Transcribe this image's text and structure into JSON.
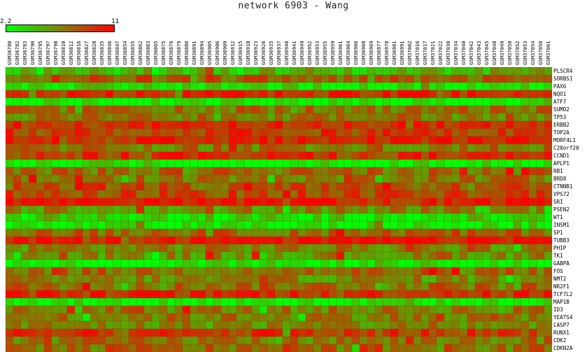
{
  "title": "network 6903 - Wang",
  "scale": {
    "min_label": "2.2",
    "max_label": "11",
    "min": 2.2,
    "max": 11,
    "low_color": "#00ff00",
    "mid_color": "#808000",
    "high_color": "#ff0000"
  },
  "chart_data": {
    "type": "heatmap",
    "title": "network 6903 - Wang",
    "value_range": [
      2.2,
      11
    ],
    "colormap": [
      "#00ff00",
      "#808000",
      "#ff0000"
    ],
    "columns": [
      "GSM36780",
      "GSM36782",
      "GSM36783",
      "GSM36790",
      "GSM36795",
      "GSM36797",
      "GSM36798",
      "GSM36810",
      "GSM36812",
      "GSM36816",
      "GSM36827",
      "GSM36828",
      "GSM36835",
      "GSM36846",
      "GSM36847",
      "GSM36854",
      "GSM36855",
      "GSM36862",
      "GSM36863",
      "GSM36865",
      "GSM36875",
      "GSM36876",
      "GSM36879",
      "GSM36886",
      "GSM36891",
      "GSM36894",
      "GSM36905",
      "GSM36906",
      "GSM36909",
      "GSM36912",
      "GSM36915",
      "GSM36918",
      "GSM36923",
      "GSM36926",
      "GSM36935",
      "GSM36937",
      "GSM36940",
      "GSM36941",
      "GSM36949",
      "GSM36952",
      "GSM36953",
      "GSM36955",
      "GSM36959",
      "GSM36961",
      "GSM36964",
      "GSM36966",
      "GSM36968",
      "GSM36969",
      "GSM36977",
      "GSM36978",
      "GSM36981",
      "GSM36991",
      "GSM37002",
      "GSM37016",
      "GSM37017",
      "GSM37021",
      "GSM37022",
      "GSM37030",
      "GSM37034",
      "GSM37040",
      "GSM37042",
      "GSM37043",
      "GSM37045",
      "GSM37048",
      "GSM37049",
      "GSM37050",
      "GSM37052",
      "GSM37053",
      "GSM37054",
      "GSM37056",
      "GSM37061"
    ],
    "rows": [
      "PLSCR4",
      "SORBS1",
      "PAX6",
      "NQO1",
      "ATF7",
      "SUMO2",
      "TP53",
      "ERBB2",
      "TOP2A",
      "MORF4L1",
      "C20orf20",
      "CCND1",
      "APLP1",
      "RB1",
      "BRD8",
      "CTNNB1",
      "VPS72",
      "SRI",
      "PSEN2",
      "WT1",
      "INSM1",
      "SP1",
      "TUBB3",
      "PHIP",
      "TK1",
      "GABPA",
      "FOS",
      "NMT2",
      "NR2F1",
      "TCF7L2",
      "MAP1B",
      "ID3",
      "YEATS4",
      "CASP7",
      "RUNX1",
      "CDK2",
      "CDKN2A"
    ],
    "row_means": [
      4.8,
      8.0,
      3.0,
      9.8,
      2.6,
      7.2,
      7.0,
      9.4,
      9.0,
      10.2,
      7.0,
      9.2,
      2.8,
      7.4,
      7.0,
      8.0,
      8.6,
      10.0,
      6.4,
      3.6,
      2.6,
      7.6,
      10.4,
      6.6,
      6.2,
      2.8,
      7.4,
      6.2,
      7.6,
      9.8,
      2.7,
      6.8,
      7.0,
      6.4,
      9.0,
      7.0,
      7.4
    ],
    "note_values": "cell values approximated from colour; each row varies around its mean"
  }
}
